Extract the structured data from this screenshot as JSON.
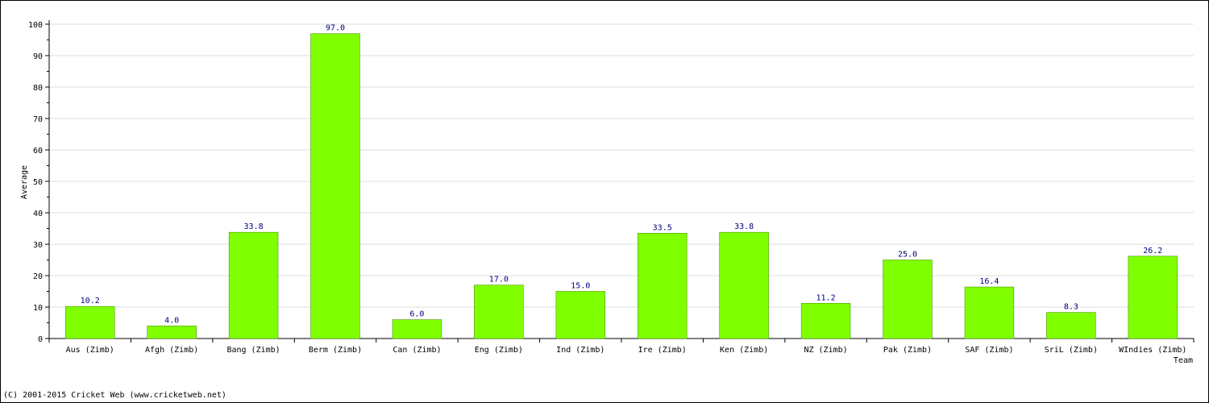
{
  "chart_data": {
    "type": "bar",
    "title": "",
    "xlabel": "Team",
    "ylabel": "Average",
    "ylim": [
      0,
      100
    ],
    "yticks": [
      0,
      10,
      20,
      30,
      40,
      50,
      60,
      70,
      80,
      90,
      100
    ],
    "grid": true,
    "legend": "none",
    "bar_color": "#80ff00",
    "label_color": "#000080",
    "categories": [
      "Aus (Zimb)",
      "Afgh (Zimb)",
      "Bang (Zimb)",
      "Berm (Zimb)",
      "Can (Zimb)",
      "Eng (Zimb)",
      "Ind (Zimb)",
      "Ire (Zimb)",
      "Ken (Zimb)",
      "NZ (Zimb)",
      "Pak (Zimb)",
      "SAF (Zimb)",
      "SriL (Zimb)",
      "WIndies (Zimb)"
    ],
    "values": [
      10.2,
      4.0,
      33.8,
      97.0,
      6.0,
      17.0,
      15.0,
      33.5,
      33.8,
      11.2,
      25.0,
      16.4,
      8.3,
      26.2
    ],
    "value_labels": [
      "10.2",
      "4.0",
      "33.8",
      "97.0",
      "6.0",
      "17.0",
      "15.0",
      "33.5",
      "33.8",
      "11.2",
      "25.0",
      "16.4",
      "8.3",
      "26.2"
    ]
  },
  "footer": {
    "copyright": "(C) 2001-2015 Cricket Web (www.cricketweb.net)"
  }
}
